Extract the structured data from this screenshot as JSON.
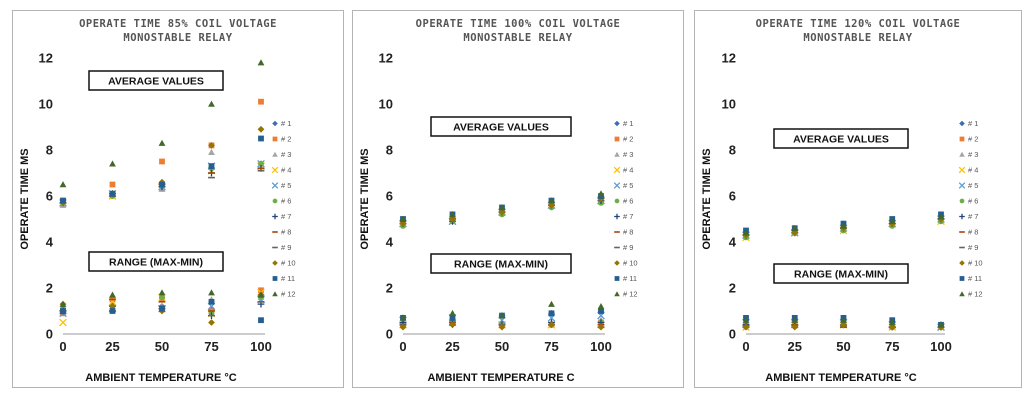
{
  "chart_data": [
    {
      "type": "scatter",
      "title": [
        "OPERATE TIME 85% COIL VOLTAGE",
        "MONOSTABLE RELAY"
      ],
      "xlabel": "AMBIENT TEMPERATURE °C",
      "ylabel": "OPERATE TIME MS",
      "x": [
        0,
        25,
        50,
        75,
        100
      ],
      "xlim": [
        0,
        100
      ],
      "ylim": [
        0,
        12
      ],
      "yticks": [
        0,
        2,
        4,
        6,
        8,
        10,
        12
      ],
      "grid": false,
      "legend_position": "right",
      "annotations": [
        "AVERAGE VALUES",
        "RANGE (MAX-MIN)"
      ],
      "series": [
        {
          "name": "# 1",
          "avg": [
            5.7,
            6.1,
            6.4,
            7.2,
            7.4
          ],
          "range": [
            1.0,
            1.6,
            1.2,
            1.1,
            1.7
          ]
        },
        {
          "name": "# 2",
          "avg": [
            5.8,
            6.5,
            7.5,
            8.2,
            10.1
          ],
          "range": [
            0.9,
            1.5,
            1.5,
            1.0,
            1.9
          ]
        },
        {
          "name": "# 3",
          "avg": [
            5.6,
            6.0,
            6.3,
            7.9,
            7.4
          ],
          "range": [
            1.1,
            1.3,
            1.2,
            1.5,
            1.6
          ]
        },
        {
          "name": "# 4",
          "avg": [
            5.7,
            6.0,
            6.4,
            7.1,
            7.3
          ],
          "range": [
            0.5,
            1.4,
            1.6,
            0.9,
            1.8
          ]
        },
        {
          "name": "# 5",
          "avg": [
            5.7,
            6.1,
            6.4,
            7.3,
            7.4
          ],
          "range": [
            0.9,
            1.1,
            1.1,
            1.2,
            1.5
          ]
        },
        {
          "name": "# 6",
          "avg": [
            5.7,
            6.0,
            6.5,
            7.2,
            7.4
          ],
          "range": [
            1.1,
            1.2,
            1.6,
            0.9,
            1.6
          ]
        },
        {
          "name": "# 7",
          "avg": [
            5.7,
            6.1,
            6.4,
            7.0,
            7.2
          ],
          "range": [
            1.0,
            1.2,
            1.1,
            0.8,
            1.3
          ]
        },
        {
          "name": "# 8",
          "avg": [
            5.7,
            6.1,
            6.5,
            7.0,
            7.2
          ],
          "range": [
            0.9,
            1.5,
            1.4,
            1.0,
            1.4
          ]
        },
        {
          "name": "# 9",
          "avg": [
            5.7,
            6.0,
            6.4,
            6.8,
            7.1
          ],
          "range": [
            1.0,
            1.0,
            1.2,
            0.8,
            1.4
          ]
        },
        {
          "name": "# 10",
          "avg": [
            5.7,
            6.1,
            6.6,
            8.2,
            8.9
          ],
          "range": [
            1.3,
            1.2,
            1.0,
            0.5,
            1.7
          ]
        },
        {
          "name": "# 11",
          "avg": [
            5.8,
            6.1,
            6.5,
            7.3,
            8.5
          ],
          "range": [
            1.0,
            1.0,
            1.1,
            1.4,
            0.6
          ]
        },
        {
          "name": "# 12",
          "avg": [
            6.5,
            7.4,
            8.3,
            10.0,
            11.8
          ],
          "range": [
            1.3,
            1.7,
            1.8,
            1.8,
            1.7
          ]
        }
      ]
    },
    {
      "type": "scatter",
      "title": [
        "OPERATE TIME 100% COIL VOLTAGE",
        "MONOSTABLE RELAY"
      ],
      "xlabel": "AMBIENT TEMPERATURE C",
      "ylabel": "OPERATE TIME MS",
      "x": [
        0,
        25,
        50,
        75,
        100
      ],
      "xlim": [
        0,
        100
      ],
      "ylim": [
        0,
        12
      ],
      "yticks": [
        0,
        2,
        4,
        6,
        8,
        10,
        12
      ],
      "grid": false,
      "legend_position": "right",
      "annotations": [
        "AVERAGE VALUES",
        "RANGE (MAX-MIN)"
      ],
      "series": [
        {
          "name": "# 1",
          "avg": [
            4.9,
            5.0,
            5.4,
            5.7,
            6.0
          ],
          "range": [
            0.7,
            0.8,
            0.8,
            0.9,
            1.0
          ]
        },
        {
          "name": "# 2",
          "avg": [
            4.9,
            5.0,
            5.3,
            5.6,
            5.8
          ],
          "range": [
            0.4,
            0.5,
            0.4,
            0.4,
            0.5
          ]
        },
        {
          "name": "# 3",
          "avg": [
            4.8,
            4.9,
            5.3,
            5.6,
            5.8
          ],
          "range": [
            0.5,
            0.6,
            0.5,
            0.5,
            0.6
          ]
        },
        {
          "name": "# 4",
          "avg": [
            4.8,
            4.9,
            5.3,
            5.6,
            5.8
          ],
          "range": [
            0.4,
            0.5,
            0.4,
            0.4,
            0.4
          ]
        },
        {
          "name": "# 5",
          "avg": [
            4.8,
            4.9,
            5.3,
            5.6,
            5.8
          ],
          "range": [
            0.6,
            0.7,
            0.6,
            0.7,
            0.8
          ]
        },
        {
          "name": "# 6",
          "avg": [
            4.7,
            4.9,
            5.2,
            5.5,
            5.7
          ],
          "range": [
            0.4,
            0.5,
            0.4,
            0.4,
            0.5
          ]
        },
        {
          "name": "# 7",
          "avg": [
            4.8,
            4.9,
            5.3,
            5.6,
            5.8
          ],
          "range": [
            0.5,
            0.5,
            0.4,
            0.5,
            0.5
          ]
        },
        {
          "name": "# 8",
          "avg": [
            4.8,
            5.0,
            5.3,
            5.6,
            5.9
          ],
          "range": [
            0.4,
            0.5,
            0.4,
            0.4,
            0.4
          ]
        },
        {
          "name": "# 9",
          "avg": [
            4.8,
            4.9,
            5.3,
            5.6,
            5.8
          ],
          "range": [
            0.4,
            0.4,
            0.4,
            0.4,
            0.3
          ]
        },
        {
          "name": "# 10",
          "avg": [
            4.8,
            5.0,
            5.3,
            5.6,
            5.9
          ],
          "range": [
            0.3,
            0.4,
            0.3,
            0.4,
            0.3
          ]
        },
        {
          "name": "# 11",
          "avg": [
            5.0,
            5.2,
            5.5,
            5.8,
            6.0
          ],
          "range": [
            0.7,
            0.7,
            0.8,
            0.9,
            1.0
          ]
        },
        {
          "name": "# 12",
          "avg": [
            5.0,
            5.2,
            5.5,
            5.8,
            6.1
          ],
          "range": [
            0.7,
            0.9,
            0.8,
            1.3,
            1.2
          ]
        }
      ]
    },
    {
      "type": "scatter",
      "title": [
        "OPERATE TIME 120% COIL VOLTAGE",
        "MONOSTABLE RELAY"
      ],
      "xlabel": "AMBIENT TEMPERATURE °C",
      "ylabel": "OPERATE TIME MS",
      "x": [
        0,
        25,
        50,
        75,
        100
      ],
      "xlim": [
        0,
        100
      ],
      "ylim": [
        0,
        12
      ],
      "yticks": [
        0,
        2,
        4,
        6,
        8,
        10,
        12
      ],
      "grid": false,
      "legend_position": "right",
      "annotations": [
        "AVERAGE VALUES",
        "RANGE (MAX-MIN)"
      ],
      "series": [
        {
          "name": "# 1",
          "avg": [
            4.4,
            4.5,
            4.7,
            4.9,
            5.1
          ],
          "range": [
            0.6,
            0.6,
            0.6,
            0.5,
            0.4
          ]
        },
        {
          "name": "# 2",
          "avg": [
            4.3,
            4.4,
            4.6,
            4.8,
            5.0
          ],
          "range": [
            0.4,
            0.4,
            0.4,
            0.3,
            0.3
          ]
        },
        {
          "name": "# 3",
          "avg": [
            4.3,
            4.4,
            4.6,
            4.8,
            5.0
          ],
          "range": [
            0.4,
            0.5,
            0.5,
            0.4,
            0.3
          ]
        },
        {
          "name": "# 4",
          "avg": [
            4.2,
            4.4,
            4.5,
            4.8,
            4.9
          ],
          "range": [
            0.3,
            0.4,
            0.4,
            0.3,
            0.3
          ]
        },
        {
          "name": "# 5",
          "avg": [
            4.3,
            4.4,
            4.6,
            4.8,
            5.0
          ],
          "range": [
            0.5,
            0.5,
            0.5,
            0.4,
            0.3
          ]
        },
        {
          "name": "# 6",
          "avg": [
            4.2,
            4.4,
            4.5,
            4.7,
            4.9
          ],
          "range": [
            0.3,
            0.4,
            0.4,
            0.3,
            0.3
          ]
        },
        {
          "name": "# 7",
          "avg": [
            4.3,
            4.4,
            4.6,
            4.8,
            5.0
          ],
          "range": [
            0.4,
            0.4,
            0.4,
            0.3,
            0.3
          ]
        },
        {
          "name": "# 8",
          "avg": [
            4.3,
            4.5,
            4.6,
            4.8,
            5.0
          ],
          "range": [
            0.3,
            0.4,
            0.3,
            0.3,
            0.3
          ]
        },
        {
          "name": "# 9",
          "avg": [
            4.3,
            4.4,
            4.6,
            4.8,
            5.0
          ],
          "range": [
            0.3,
            0.3,
            0.3,
            0.3,
            0.3
          ]
        },
        {
          "name": "# 10",
          "avg": [
            4.3,
            4.4,
            4.6,
            4.8,
            5.0
          ],
          "range": [
            0.3,
            0.3,
            0.4,
            0.3,
            0.3
          ]
        },
        {
          "name": "# 11",
          "avg": [
            4.5,
            4.6,
            4.8,
            5.0,
            5.2
          ],
          "range": [
            0.7,
            0.7,
            0.7,
            0.6,
            0.4
          ]
        },
        {
          "name": "# 12",
          "avg": [
            4.4,
            4.6,
            4.7,
            4.9,
            5.1
          ],
          "range": [
            0.6,
            0.6,
            0.6,
            0.5,
            0.4
          ]
        }
      ]
    }
  ],
  "marker_styles": [
    {
      "shape": "diamond",
      "color": "#3f6db5"
    },
    {
      "shape": "square",
      "color": "#ed7d31"
    },
    {
      "shape": "triangle",
      "color": "#a5a5a5"
    },
    {
      "shape": "x",
      "color": "#ffc000"
    },
    {
      "shape": "x",
      "color": "#5b9bd5"
    },
    {
      "shape": "circle",
      "color": "#70ad47"
    },
    {
      "shape": "plus",
      "color": "#264478"
    },
    {
      "shape": "dash",
      "color": "#9e480e"
    },
    {
      "shape": "dash",
      "color": "#636363"
    },
    {
      "shape": "diamond",
      "color": "#997300"
    },
    {
      "shape": "square",
      "color": "#255e91"
    },
    {
      "shape": "triangle",
      "color": "#43682b"
    }
  ]
}
